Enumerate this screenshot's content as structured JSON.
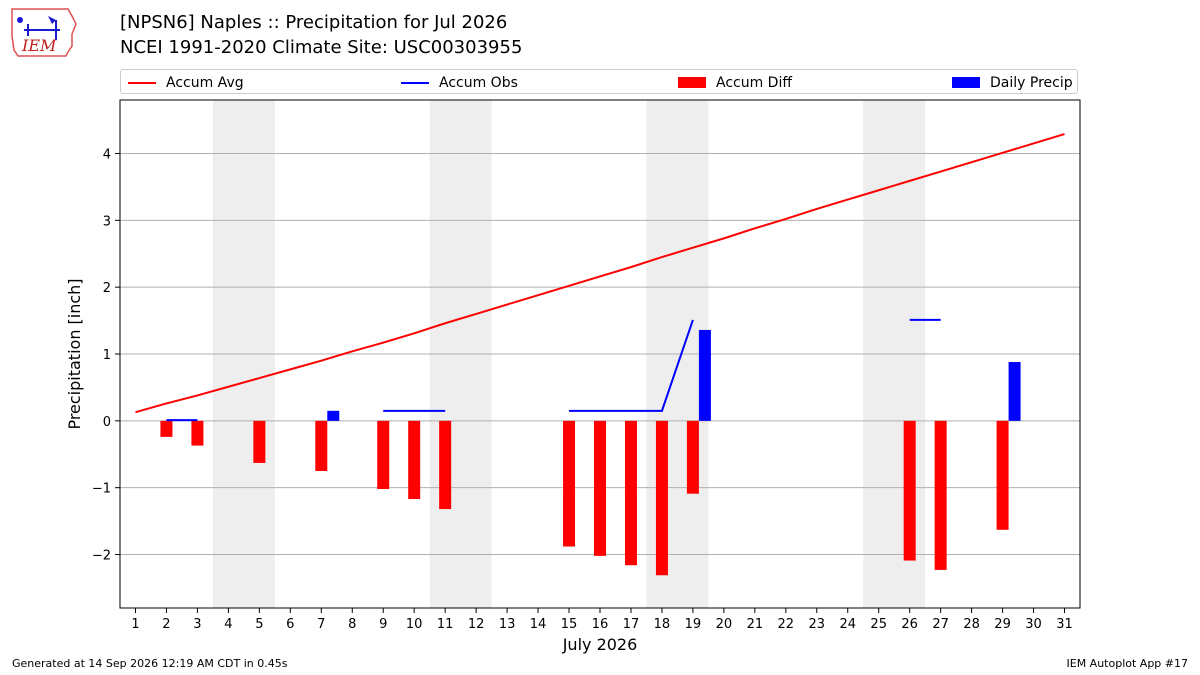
{
  "header": {
    "title_line1": "[NPSN6] Naples :: Precipitation for Jul 2026",
    "title_line2": "NCEI 1991-2020 Climate Site: USC00303955",
    "logo_text": "IEM"
  },
  "legend": {
    "placement": "top",
    "items": [
      {
        "label": "Accum Avg",
        "kind": "line",
        "color": "#ff0000"
      },
      {
        "label": "Accum Obs",
        "kind": "line",
        "color": "#0000ff"
      },
      {
        "label": "Accum Diff",
        "kind": "bar",
        "color": "#ff0000"
      },
      {
        "label": "Daily Precip",
        "kind": "bar",
        "color": "#0000ff"
      }
    ]
  },
  "footer": {
    "left": "Generated at 14 Sep 2026 12:19 AM CDT in 0.45s",
    "right": "IEM Autoplot App #17"
  },
  "chart_data": {
    "type": "bar",
    "xlabel": "July 2026",
    "ylabel": "Precipitation [inch]",
    "xlim": [
      0.5,
      31.5
    ],
    "ylim": [
      -2.8,
      4.8
    ],
    "x_ticks": [
      1,
      2,
      3,
      4,
      5,
      6,
      7,
      8,
      9,
      10,
      11,
      12,
      13,
      14,
      15,
      16,
      17,
      18,
      19,
      20,
      21,
      22,
      23,
      24,
      25,
      26,
      27,
      28,
      29,
      30,
      31
    ],
    "y_ticks": [
      -2,
      -1,
      0,
      1,
      2,
      3,
      4
    ],
    "y_tick_labels": [
      "−2",
      "−1",
      "0",
      "1",
      "2",
      "3",
      "4"
    ],
    "grid": "horizontal",
    "weekend_shading": [
      [
        3.5,
        5.5
      ],
      [
        10.5,
        12.5
      ],
      [
        17.5,
        19.5
      ],
      [
        24.5,
        26.5
      ]
    ],
    "colors": {
      "avg": "#ff0000",
      "obs": "#0000ff",
      "diff": "#ff0000",
      "daily": "#0000ff",
      "weekend": "#eeeeee"
    },
    "series": [
      {
        "name": "Accum Avg",
        "kind": "line",
        "x": [
          1,
          2,
          3,
          4,
          5,
          6,
          7,
          8,
          9,
          10,
          11,
          12,
          13,
          14,
          15,
          16,
          17,
          18,
          19,
          20,
          21,
          22,
          23,
          24,
          25,
          26,
          27,
          28,
          29,
          30,
          31
        ],
        "values": [
          0.13,
          0.26,
          0.38,
          0.51,
          0.64,
          0.77,
          0.9,
          1.04,
          1.17,
          1.31,
          1.46,
          1.6,
          1.74,
          1.88,
          2.02,
          2.16,
          2.3,
          2.45,
          2.59,
          2.73,
          2.88,
          3.02,
          3.17,
          3.31,
          3.45,
          3.59,
          3.73,
          3.87,
          4.01,
          4.15,
          4.29
        ]
      },
      {
        "name": "Accum Obs",
        "kind": "line",
        "segments": [
          {
            "x": [
              2,
              3
            ],
            "values": [
              0.01,
              0.01
            ]
          },
          {
            "x": [
              9,
              10,
              11
            ],
            "values": [
              0.15,
              0.15,
              0.15
            ]
          },
          {
            "x": [
              15,
              16,
              17,
              18,
              19
            ],
            "values": [
              0.15,
              0.15,
              0.15,
              0.15,
              1.51
            ]
          },
          {
            "x": [
              26,
              27
            ],
            "values": [
              1.51,
              1.51
            ]
          }
        ]
      },
      {
        "name": "Accum Diff",
        "kind": "bar",
        "x": [
          2,
          3,
          5,
          7,
          9,
          10,
          11,
          15,
          16,
          17,
          18,
          19,
          26,
          27,
          29
        ],
        "values": [
          -0.24,
          -0.37,
          -0.63,
          -0.75,
          -1.02,
          -1.17,
          -1.32,
          -1.88,
          -2.02,
          -2.16,
          -2.31,
          -1.09,
          -2.09,
          -2.23,
          -1.63
        ]
      },
      {
        "name": "Daily Precip",
        "kind": "bar",
        "x": [
          7,
          19,
          29
        ],
        "values": [
          0.15,
          1.36,
          0.88
        ]
      }
    ]
  }
}
